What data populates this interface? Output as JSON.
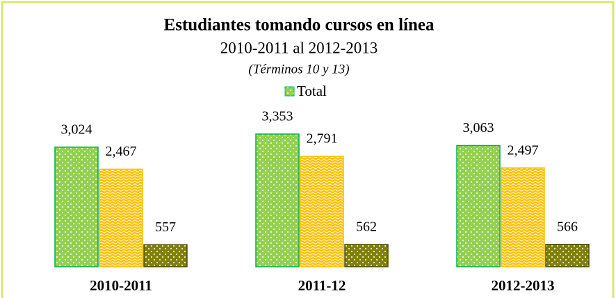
{
  "chart_data": {
    "type": "bar",
    "title": "Estudiantes tomando cursos en línea",
    "subtitle": "2010-2011 al 2012-2013",
    "annotation": "(Términos 10 y 13)",
    "categories": [
      "2010-2011",
      "2011-12",
      "2012-2013"
    ],
    "series": [
      {
        "name": "Total",
        "color": "#92d050",
        "values": [
          3024,
          3353,
          3063
        ],
        "value_labels": [
          "3,024",
          "3,353",
          "3,063"
        ]
      },
      {
        "color": "#ffc000",
        "values": [
          2467,
          2791,
          2497
        ],
        "value_labels": [
          "2,467",
          "2,791",
          "2,497"
        ]
      },
      {
        "color": "#808000",
        "values": [
          557,
          562,
          566
        ],
        "value_labels": [
          "557",
          "562",
          "566"
        ]
      }
    ],
    "legend": "top"
  }
}
